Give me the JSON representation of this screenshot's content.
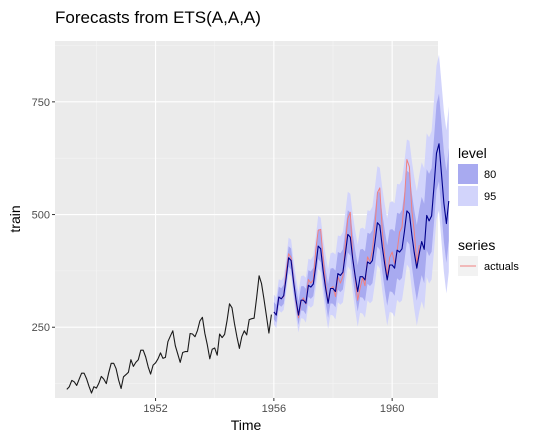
{
  "chart_data": {
    "type": "line",
    "title": "Forecasts from ETS(A,A,A)",
    "xlabel": "Time",
    "ylabel": "train",
    "xlim": [
      1948.6,
      1961.55
    ],
    "ylim": [
      93,
      885
    ],
    "x_ticks": [
      1952,
      1956,
      1960
    ],
    "x_tick_labels": [
      "1952",
      "1956",
      "1960"
    ],
    "y_ticks": [
      250,
      500,
      750
    ],
    "y_tick_labels": [
      "250",
      "500",
      "750"
    ],
    "grid": true,
    "legend_position": "right",
    "level_legend": {
      "title": "level",
      "items": [
        {
          "label": "80",
          "color": "#b1b3ee"
        },
        {
          "label": "95",
          "color": "#d5d7fb"
        }
      ]
    },
    "series_legend": {
      "title": "series",
      "items": [
        {
          "label": "actuals",
          "color": "#f08080"
        }
      ]
    },
    "colors": {
      "panel": "#ebebeb",
      "grid_major": "#ffffff",
      "history_line": "#1a1a1a",
      "forecast_line": "#00008b",
      "band80": "#a8aaf0",
      "band95": "#d2d4fb",
      "actuals": "#f08080"
    },
    "history_start": 1949.0,
    "history": [
      112,
      118,
      132,
      129,
      121,
      135,
      148,
      148,
      136,
      119,
      104,
      118,
      115,
      126,
      141,
      135,
      125,
      149,
      170,
      170,
      158,
      133,
      114,
      140,
      145,
      150,
      178,
      163,
      172,
      178,
      199,
      199,
      184,
      162,
      146,
      166,
      171,
      180,
      193,
      181,
      183,
      218,
      230,
      242,
      209,
      191,
      172,
      194,
      196,
      196,
      236,
      235,
      229,
      243,
      264,
      272,
      237,
      211,
      180,
      201,
      204,
      188,
      235,
      227,
      234,
      264,
      302,
      293,
      259,
      229,
      203,
      229,
      242,
      233,
      267,
      269,
      270,
      315,
      364,
      347,
      312,
      274,
      237,
      278
    ],
    "forecast_start": 1956.0,
    "forecast": [
      284,
      277,
      317,
      313,
      320,
      360,
      404,
      398,
      350,
      311,
      277,
      310,
      310,
      303,
      343,
      339,
      346,
      386,
      430,
      424,
      376,
      337,
      303,
      336,
      336,
      329,
      369,
      365,
      372,
      412,
      456,
      450,
      402,
      363,
      329,
      362,
      362,
      355,
      395,
      391,
      398,
      438,
      482,
      476,
      428,
      389,
      355,
      388,
      388,
      381,
      421,
      417,
      424,
      464,
      508,
      502,
      454,
      415,
      381,
      414,
      440,
      423,
      498,
      486,
      497,
      565,
      636,
      657,
      590,
      525,
      480,
      530
    ],
    "actuals": [
      284,
      277,
      317,
      313,
      318,
      374,
      413,
      405,
      355,
      306,
      271,
      306,
      315,
      301,
      356,
      348,
      355,
      422,
      465,
      467,
      404,
      347,
      305,
      336,
      340,
      318,
      362,
      348,
      363,
      435,
      491,
      505,
      404,
      359,
      310,
      337,
      360,
      342,
      406,
      396,
      420,
      472,
      548,
      559,
      463,
      407,
      362,
      405,
      417,
      391,
      419,
      461,
      472,
      535,
      622,
      606,
      508,
      461,
      390,
      432
    ],
    "band80_halfwidths_start_end": [
      22,
      118
    ],
    "band95_halfwidths_start_end": [
      38,
      210
    ]
  }
}
